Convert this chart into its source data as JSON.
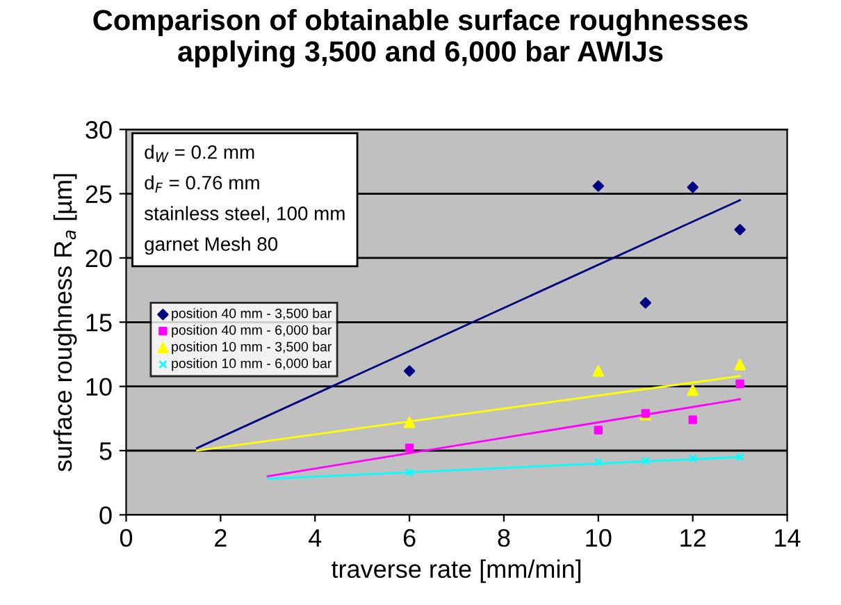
{
  "chart_data": {
    "type": "scatter",
    "title": "Comparison of obtainable surface roughnesses\napplying 3,500 and 6,000 bar AWIJs",
    "xlabel": "traverse rate [mm/min]",
    "ylabel": "surface roughness R$_{a}$ [µm]",
    "annotations": [
      "d$_{W}$ = 0.2 mm",
      "d$_{F}$ = 0.76 mm",
      "stainless steel, 100 mm",
      "garnet Mesh 80"
    ],
    "xlim": [
      0,
      14
    ],
    "xticks": [
      0,
      2,
      4,
      6,
      8,
      10,
      12,
      14
    ],
    "ylim": [
      0,
      30
    ],
    "yticks": [
      0,
      5,
      10,
      15,
      20,
      25,
      30
    ],
    "grid": "y",
    "legend": "left",
    "series": [
      {
        "name": "position 40 mm - 3,500 bar",
        "color": "#000080",
        "marker": "diamond",
        "x": [
          6,
          10,
          11,
          12,
          13
        ],
        "values": [
          11.2,
          25.6,
          16.5,
          25.5,
          22.2
        ]
      },
      {
        "name": "position 40 mm - 6,000 bar",
        "color": "#ff00ff",
        "marker": "square",
        "x": [
          6,
          10,
          11,
          12,
          13
        ],
        "values": [
          5.2,
          6.6,
          7.9,
          7.4,
          10.2
        ]
      },
      {
        "name": "position 10 mm - 3,500 bar",
        "color": "#ffff00",
        "marker": "triangle",
        "x": [
          6,
          10,
          11,
          12,
          13
        ],
        "values": [
          7.2,
          11.2,
          7.8,
          9.7,
          11.7
        ]
      },
      {
        "name": "position 10 mm - 6,000 bar",
        "color": "#00ffff",
        "marker": "cross",
        "x": [
          6,
          10,
          11,
          12,
          13
        ],
        "values": [
          3.3,
          4.1,
          4.2,
          4.4,
          4.5
        ]
      },
      {
        "type": "line",
        "color": "#000080",
        "x": [
          1.5,
          13
        ],
        "values": [
          5.2,
          24.5
        ]
      },
      {
        "type": "line",
        "color": "#ff00ff",
        "x": [
          3,
          13
        ],
        "values": [
          3.0,
          9.0
        ]
      },
      {
        "type": "line",
        "color": "#ffff00",
        "x": [
          1.5,
          13
        ],
        "values": [
          5.0,
          10.8
        ]
      },
      {
        "type": "line",
        "color": "#00ffff",
        "x": [
          3,
          13
        ],
        "values": [
          2.8,
          4.5
        ]
      }
    ]
  }
}
